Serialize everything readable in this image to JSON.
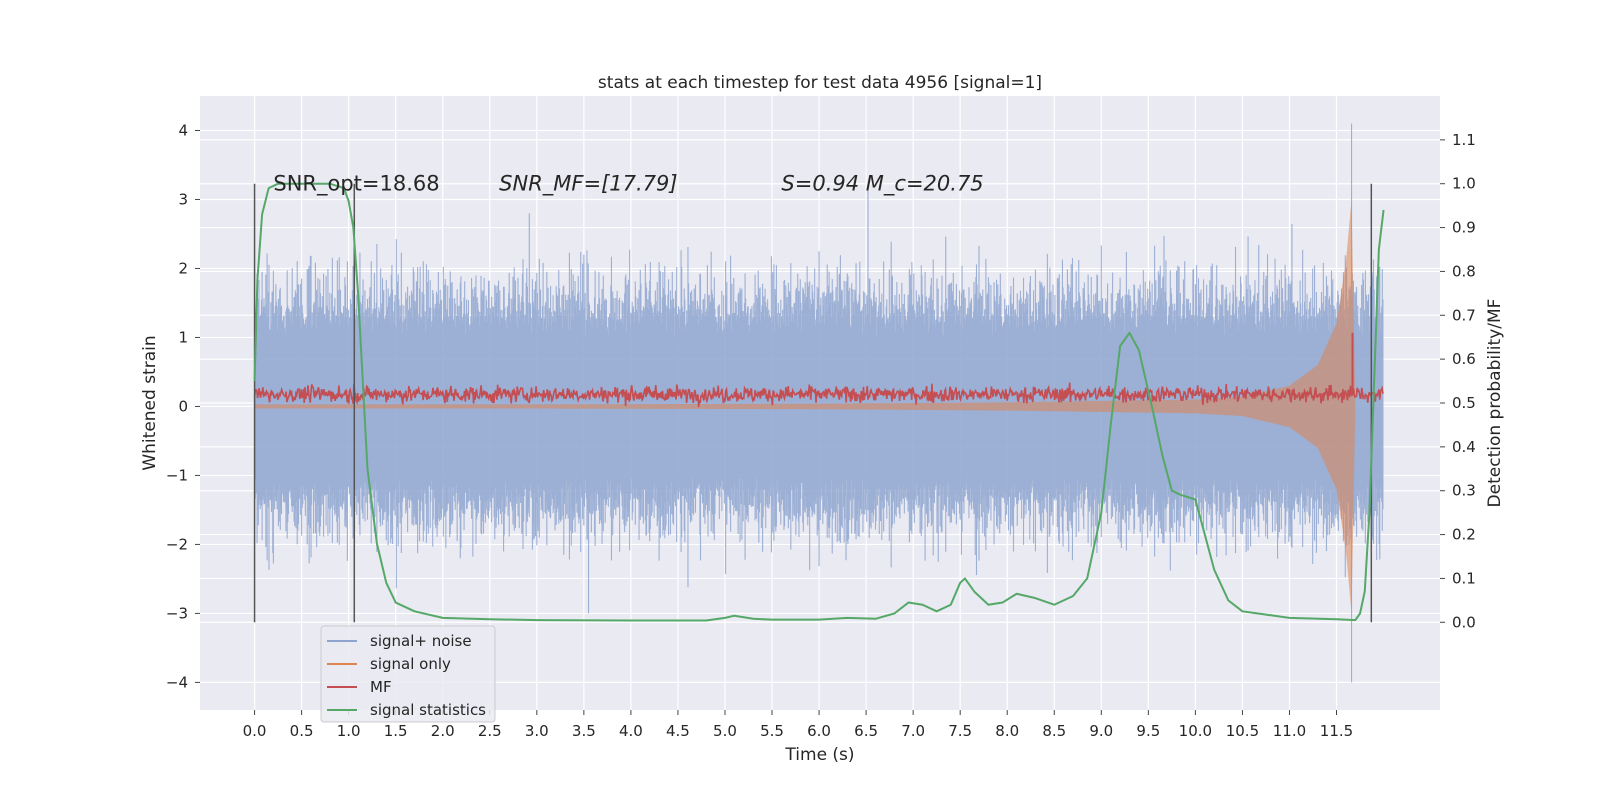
{
  "chart_data": {
    "type": "line",
    "title": "stats at each timestep for test data 4956 [signal=1]",
    "xlabel": "Time (s)",
    "ylabel": "Whitened strain",
    "y2label": "Detection probability/MF",
    "xlim": [
      -0.58,
      12.6
    ],
    "ylim": [
      -4.4,
      4.5
    ],
    "y2lim": [
      -0.2,
      1.2
    ],
    "xticks": [
      0.0,
      0.5,
      1.0,
      1.5,
      2.0,
      2.5,
      3.0,
      3.5,
      4.0,
      4.5,
      5.0,
      5.5,
      6.0,
      6.5,
      7.0,
      7.5,
      8.0,
      8.5,
      9.0,
      9.5,
      10.0,
      10.5,
      11.0,
      11.5
    ],
    "xtick_labels": [
      "0.0",
      "0.5",
      "1.0",
      "1.5",
      "2.0",
      "2.5",
      "3.0",
      "3.5",
      "4.0",
      "4.5",
      "5.0",
      "5.5",
      "6.0",
      "6.5",
      "7.0",
      "7.5",
      "8.0",
      "8.5",
      "9.0",
      "9.5",
      "10.0",
      "10.5",
      "11.0",
      "11.5"
    ],
    "yticks": [
      -4,
      -3,
      -2,
      -1,
      0,
      1,
      2,
      3,
      4
    ],
    "ytick_labels": [
      "−4",
      "−3",
      "−2",
      "−1",
      "0",
      "1",
      "2",
      "3",
      "4"
    ],
    "y2ticks": [
      0.0,
      0.1,
      0.2,
      0.3,
      0.4,
      0.5,
      0.6,
      0.7,
      0.8,
      0.9,
      1.0,
      1.1
    ],
    "y2tick_labels": [
      "0.0",
      "0.1",
      "0.2",
      "0.3",
      "0.4",
      "0.5",
      "0.6",
      "0.7",
      "0.8",
      "0.9",
      "1.0",
      "1.1"
    ],
    "grid": true,
    "legend_position": "lower-left",
    "annotations": [
      {
        "text": "SNR_opt=18.68",
        "x": 0.2,
        "y2": 0.985,
        "italic": false
      },
      {
        "text": "SNR_MF=[17.79]",
        "x": 2.6,
        "y2": 0.985,
        "italic": true
      },
      {
        "text": "S=0.94  M_c=20.75",
        "x": 5.6,
        "y2": 0.985,
        "italic": true
      }
    ],
    "vertical_lines": [
      {
        "x": 0.0,
        "y2_range": [
          0.0,
          1.0
        ]
      },
      {
        "x": 1.06,
        "y2_range": [
          0.0,
          1.0
        ]
      },
      {
        "x": 11.87,
        "y2_range": [
          0.0,
          1.0
        ]
      }
    ],
    "series": [
      {
        "name": "signal+ noise",
        "color": "#8ea4cf",
        "axis": "left",
        "x_range": [
          0.0,
          12.0
        ],
        "typical_amplitude": 1.6,
        "peak_values": [
          {
            "x": 2.92,
            "y": 2.8
          },
          {
            "x": 3.55,
            "y": -3.0
          },
          {
            "x": 6.52,
            "y": 3.15
          },
          {
            "x": 11.66,
            "y": 4.1
          },
          {
            "x": 11.66,
            "y": -4.0
          }
        ]
      },
      {
        "name": "signal only",
        "color": "#dd8452",
        "axis": "left",
        "x_range": [
          0.0,
          11.7
        ],
        "envelope": [
          [
            0.0,
            0.03
          ],
          [
            3.0,
            0.03
          ],
          [
            6.0,
            0.04
          ],
          [
            8.0,
            0.06
          ],
          [
            9.0,
            0.08
          ],
          [
            10.0,
            0.1
          ],
          [
            10.5,
            0.14
          ],
          [
            11.0,
            0.3
          ],
          [
            11.3,
            0.6
          ],
          [
            11.5,
            1.2
          ],
          [
            11.6,
            2.1
          ],
          [
            11.66,
            3.0
          ],
          [
            11.7,
            0.0
          ]
        ]
      },
      {
        "name": "MF",
        "color": "#c44e52",
        "axis": "right",
        "x_range": [
          0.0,
          12.0
        ],
        "baseline": 0.52,
        "noise": 0.013,
        "peaks": [
          {
            "x": 11.67,
            "y": 0.66
          }
        ]
      },
      {
        "name": "signal statistics",
        "color": "#55a868",
        "axis": "right",
        "points": [
          [
            0.0,
            0.55
          ],
          [
            0.03,
            0.78
          ],
          [
            0.08,
            0.93
          ],
          [
            0.15,
            0.99
          ],
          [
            0.25,
            1.0
          ],
          [
            0.5,
            1.0
          ],
          [
            0.8,
            1.0
          ],
          [
            0.95,
            0.99
          ],
          [
            1.0,
            0.96
          ],
          [
            1.05,
            0.9
          ],
          [
            1.1,
            0.75
          ],
          [
            1.15,
            0.55
          ],
          [
            1.2,
            0.35
          ],
          [
            1.3,
            0.18
          ],
          [
            1.4,
            0.09
          ],
          [
            1.5,
            0.045
          ],
          [
            1.7,
            0.025
          ],
          [
            2.0,
            0.01
          ],
          [
            2.5,
            0.007
          ],
          [
            3.0,
            0.005
          ],
          [
            4.0,
            0.004
          ],
          [
            4.8,
            0.004
          ],
          [
            5.0,
            0.01
          ],
          [
            5.1,
            0.015
          ],
          [
            5.3,
            0.008
          ],
          [
            5.5,
            0.006
          ],
          [
            6.0,
            0.006
          ],
          [
            6.3,
            0.01
          ],
          [
            6.6,
            0.008
          ],
          [
            6.8,
            0.02
          ],
          [
            6.95,
            0.045
          ],
          [
            7.1,
            0.04
          ],
          [
            7.25,
            0.025
          ],
          [
            7.4,
            0.04
          ],
          [
            7.5,
            0.09
          ],
          [
            7.55,
            0.1
          ],
          [
            7.65,
            0.07
          ],
          [
            7.8,
            0.04
          ],
          [
            7.95,
            0.045
          ],
          [
            8.1,
            0.065
          ],
          [
            8.3,
            0.055
          ],
          [
            8.5,
            0.04
          ],
          [
            8.7,
            0.06
          ],
          [
            8.85,
            0.1
          ],
          [
            9.0,
            0.25
          ],
          [
            9.1,
            0.45
          ],
          [
            9.2,
            0.63
          ],
          [
            9.3,
            0.66
          ],
          [
            9.4,
            0.62
          ],
          [
            9.55,
            0.48
          ],
          [
            9.65,
            0.38
          ],
          [
            9.75,
            0.3
          ],
          [
            9.85,
            0.29
          ],
          [
            10.0,
            0.28
          ],
          [
            10.1,
            0.2
          ],
          [
            10.2,
            0.12
          ],
          [
            10.35,
            0.05
          ],
          [
            10.5,
            0.025
          ],
          [
            11.0,
            0.01
          ],
          [
            11.5,
            0.007
          ],
          [
            11.7,
            0.005
          ],
          [
            11.75,
            0.02
          ],
          [
            11.8,
            0.07
          ],
          [
            11.85,
            0.25
          ],
          [
            11.9,
            0.55
          ],
          [
            11.95,
            0.85
          ],
          [
            12.0,
            0.94
          ]
        ]
      }
    ]
  }
}
